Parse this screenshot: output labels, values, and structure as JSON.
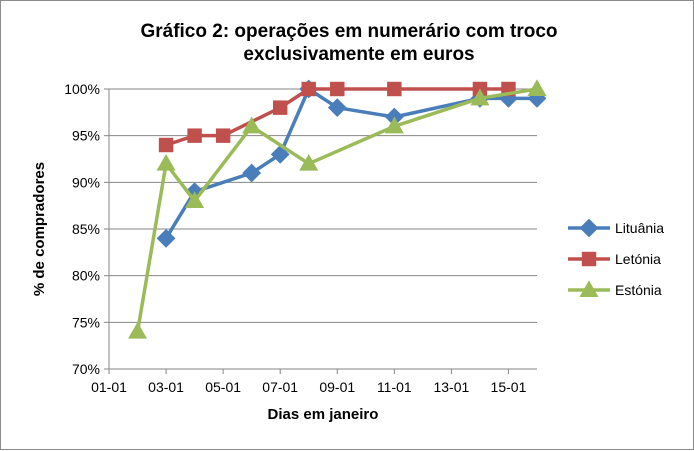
{
  "chart_data": {
    "type": "line",
    "title_lines": [
      "Gráfico 2: operações em numerário com troco",
      "exclusivamente em euros"
    ],
    "xlabel": "Dias em janeiro",
    "ylabel": "% de compradores",
    "x_ticks": [
      "01-01",
      "03-01",
      "05-01",
      "07-01",
      "09-01",
      "11-01",
      "13-01",
      "15-01"
    ],
    "y_ticks": [
      "70%",
      "75%",
      "80%",
      "85%",
      "90%",
      "95%",
      "100%"
    ],
    "xlim": [
      "01-01",
      "16-01"
    ],
    "ylim": [
      70,
      100
    ],
    "grid": "horizontal",
    "legend_position": "right",
    "series": [
      {
        "name": "Lituânia",
        "color": "#4a7ebb",
        "marker": "diamond",
        "points": [
          {
            "x": "03-01",
            "y": 84
          },
          {
            "x": "04-01",
            "y": 89
          },
          {
            "x": "06-01",
            "y": 91
          },
          {
            "x": "07-01",
            "y": 93
          },
          {
            "x": "08-01",
            "y": 100
          },
          {
            "x": "09-01",
            "y": 98
          },
          {
            "x": "11-01",
            "y": 97
          },
          {
            "x": "14-01",
            "y": 99
          },
          {
            "x": "15-01",
            "y": 99
          },
          {
            "x": "16-01",
            "y": 99
          }
        ]
      },
      {
        "name": "Letónia",
        "color": "#c0504d",
        "marker": "square",
        "points": [
          {
            "x": "03-01",
            "y": 94
          },
          {
            "x": "04-01",
            "y": 95
          },
          {
            "x": "05-01",
            "y": 95
          },
          {
            "x": "07-01",
            "y": 98
          },
          {
            "x": "08-01",
            "y": 100
          },
          {
            "x": "09-01",
            "y": 100
          },
          {
            "x": "11-01",
            "y": 100
          },
          {
            "x": "14-01",
            "y": 100
          },
          {
            "x": "15-01",
            "y": 100
          }
        ]
      },
      {
        "name": "Estónia",
        "color": "#9bbb59",
        "marker": "triangle",
        "points": [
          {
            "x": "02-01",
            "y": 74
          },
          {
            "x": "03-01",
            "y": 92
          },
          {
            "x": "04-01",
            "y": 88
          },
          {
            "x": "06-01",
            "y": 96
          },
          {
            "x": "08-01",
            "y": 92
          },
          {
            "x": "11-01",
            "y": 96
          },
          {
            "x": "14-01",
            "y": 99
          },
          {
            "x": "16-01",
            "y": 100
          }
        ]
      }
    ]
  }
}
